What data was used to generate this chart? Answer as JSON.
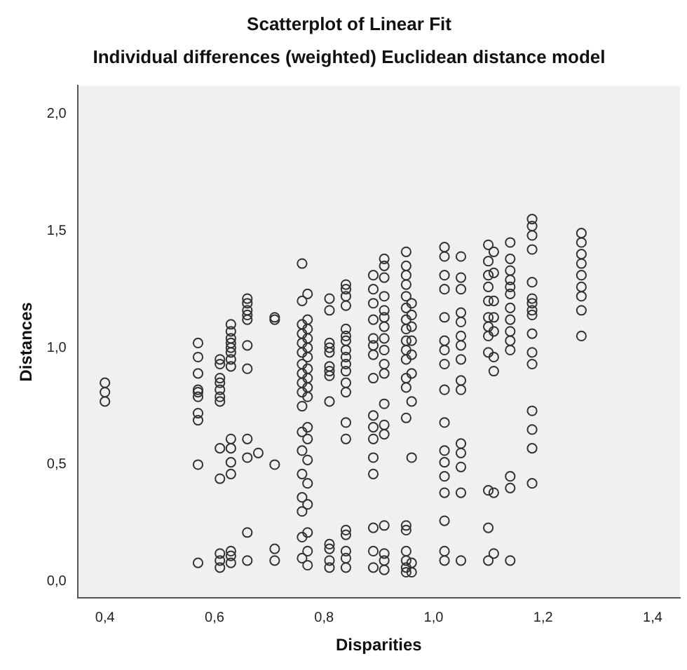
{
  "chart_data": {
    "type": "scatter",
    "title": "Scatterplot of Linear Fit",
    "subtitle": "Individual differences (weighted) Euclidean distance model",
    "xlabel": "Disparities",
    "ylabel": "Distances",
    "xlim": [
      0.35,
      1.45
    ],
    "ylim": [
      -0.07,
      2.12
    ],
    "xticks": [
      {
        "value": 0.4,
        "label": "0,4"
      },
      {
        "value": 0.6,
        "label": "0,6"
      },
      {
        "value": 0.8,
        "label": "0,8"
      },
      {
        "value": 1.0,
        "label": "1,0"
      },
      {
        "value": 1.2,
        "label": "1,2"
      },
      {
        "value": 1.4,
        "label": "1,4"
      }
    ],
    "yticks": [
      {
        "value": 0,
        "label": "0,0"
      },
      {
        "value": 0.5,
        "label": "0,5"
      },
      {
        "value": 1.0,
        "label": "1,0"
      },
      {
        "value": 1.5,
        "label": "1,5"
      },
      {
        "value": 2.0,
        "label": "2,0"
      }
    ],
    "grid": false,
    "legend": false,
    "marker": "circle",
    "color": "#333333",
    "x": [
      0.4,
      0.4,
      0.4,
      0.57,
      0.57,
      0.57,
      0.57,
      0.57,
      0.57,
      0.57,
      0.57,
      0.57,
      0.57,
      0.61,
      0.61,
      0.61,
      0.61,
      0.61,
      0.61,
      0.61,
      0.61,
      0.61,
      0.61,
      0.61,
      0.61,
      0.63,
      0.63,
      0.63,
      0.63,
      0.63,
      0.63,
      0.63,
      0.63,
      0.63,
      0.63,
      0.63,
      0.63,
      0.63,
      0.63,
      0.63,
      0.66,
      0.66,
      0.66,
      0.66,
      0.66,
      0.66,
      0.66,
      0.66,
      0.66,
      0.66,
      0.66,
      0.68,
      0.71,
      0.71,
      0.71,
      0.71,
      0.71,
      0.76,
      0.76,
      0.76,
      0.76,
      0.76,
      0.76,
      0.76,
      0.76,
      0.76,
      0.76,
      0.76,
      0.76,
      0.76,
      0.76,
      0.76,
      0.76,
      0.76,
      0.76,
      0.77,
      0.77,
      0.77,
      0.77,
      0.77,
      0.77,
      0.77,
      0.77,
      0.77,
      0.77,
      0.77,
      0.77,
      0.77,
      0.77,
      0.77,
      0.77,
      0.77,
      0.77,
      0.81,
      0.81,
      0.81,
      0.81,
      0.81,
      0.81,
      0.81,
      0.81,
      0.81,
      0.81,
      0.81,
      0.81,
      0.81,
      0.84,
      0.84,
      0.84,
      0.84,
      0.84,
      0.84,
      0.84,
      0.84,
      0.84,
      0.84,
      0.84,
      0.84,
      0.84,
      0.84,
      0.84,
      0.84,
      0.84,
      0.84,
      0.84,
      0.84,
      0.89,
      0.89,
      0.89,
      0.89,
      0.89,
      0.89,
      0.89,
      0.89,
      0.89,
      0.89,
      0.89,
      0.89,
      0.89,
      0.89,
      0.89,
      0.89,
      0.91,
      0.91,
      0.91,
      0.91,
      0.91,
      0.91,
      0.91,
      0.91,
      0.91,
      0.91,
      0.91,
      0.91,
      0.91,
      0.91,
      0.91,
      0.91,
      0.91,
      0.91,
      0.95,
      0.95,
      0.95,
      0.95,
      0.95,
      0.95,
      0.95,
      0.95,
      0.95,
      0.95,
      0.95,
      0.95,
      0.95,
      0.95,
      0.95,
      0.95,
      0.95,
      0.95,
      0.95,
      0.95,
      0.96,
      0.96,
      0.96,
      0.96,
      0.96,
      0.96,
      0.96,
      0.96,
      0.96,
      0.96,
      1.02,
      1.02,
      1.02,
      1.02,
      1.02,
      1.02,
      1.02,
      1.02,
      1.02,
      1.02,
      1.02,
      1.02,
      1.02,
      1.02,
      1.02,
      1.02,
      1.02,
      1.05,
      1.05,
      1.05,
      1.05,
      1.05,
      1.05,
      1.05,
      1.05,
      1.05,
      1.05,
      1.05,
      1.05,
      1.05,
      1.05,
      1.05,
      1.1,
      1.1,
      1.1,
      1.1,
      1.1,
      1.1,
      1.1,
      1.1,
      1.1,
      1.1,
      1.1,
      1.1,
      1.11,
      1.11,
      1.11,
      1.11,
      1.11,
      1.11,
      1.11,
      1.11,
      1.11,
      1.14,
      1.14,
      1.14,
      1.14,
      1.14,
      1.14,
      1.14,
      1.14,
      1.14,
      1.14,
      1.14,
      1.14,
      1.14,
      1.14,
      1.18,
      1.18,
      1.18,
      1.18,
      1.18,
      1.18,
      1.18,
      1.18,
      1.18,
      1.18,
      1.18,
      1.18,
      1.18,
      1.18,
      1.18,
      1.18,
      1.27,
      1.27,
      1.27,
      1.27,
      1.27,
      1.27,
      1.27,
      1.27,
      1.27
    ],
    "values": [
      0.85,
      0.81,
      0.77,
      1.02,
      0.96,
      0.89,
      0.82,
      0.81,
      0.79,
      0.72,
      0.69,
      0.5,
      0.08,
      0.95,
      0.93,
      0.87,
      0.85,
      0.82,
      0.79,
      0.77,
      0.57,
      0.44,
      0.12,
      0.09,
      0.06,
      1.1,
      1.07,
      1.04,
      1.02,
      1.0,
      0.98,
      0.95,
      0.92,
      0.61,
      0.57,
      0.51,
      0.46,
      0.13,
      0.11,
      0.08,
      1.21,
      1.19,
      1.16,
      1.14,
      1.12,
      1.01,
      0.91,
      0.61,
      0.53,
      0.21,
      0.09,
      0.55,
      1.13,
      1.12,
      0.5,
      0.14,
      0.09,
      1.36,
      1.2,
      1.1,
      1.06,
      1.02,
      0.98,
      0.93,
      0.89,
      0.85,
      0.81,
      0.75,
      0.64,
      0.56,
      0.46,
      0.36,
      0.3,
      0.19,
      0.1,
      1.23,
      1.12,
      1.08,
      1.04,
      1.0,
      0.96,
      0.91,
      0.87,
      0.83,
      0.79,
      0.66,
      0.61,
      0.52,
      0.42,
      0.33,
      0.21,
      0.13,
      0.07,
      1.21,
      1.16,
      1.02,
      1.0,
      0.98,
      0.92,
      0.9,
      0.88,
      0.77,
      0.16,
      0.14,
      0.09,
      0.06,
      1.27,
      1.25,
      1.22,
      1.18,
      1.08,
      1.05,
      1.03,
      0.99,
      0.96,
      0.93,
      0.9,
      0.85,
      0.81,
      0.68,
      0.61,
      0.22,
      0.2,
      0.13,
      0.1,
      0.06,
      1.31,
      1.25,
      1.19,
      1.12,
      1.04,
      1.01,
      0.97,
      0.87,
      0.71,
      0.66,
      0.61,
      0.53,
      0.46,
      0.23,
      0.13,
      0.06,
      1.38,
      1.35,
      1.3,
      1.22,
      1.16,
      1.13,
      1.09,
      1.04,
      0.99,
      0.93,
      0.89,
      0.76,
      0.67,
      0.63,
      0.24,
      0.12,
      0.09,
      0.05,
      1.41,
      1.35,
      1.31,
      1.27,
      1.22,
      1.17,
      1.12,
      1.08,
      1.03,
      0.99,
      0.95,
      0.87,
      0.83,
      0.7,
      0.24,
      0.22,
      0.13,
      0.09,
      0.06,
      0.04,
      1.19,
      1.14,
      1.09,
      1.03,
      0.97,
      0.89,
      0.77,
      0.53,
      0.08,
      0.04,
      1.43,
      1.39,
      1.31,
      1.25,
      1.13,
      1.03,
      0.99,
      0.93,
      0.82,
      0.68,
      0.56,
      0.51,
      0.45,
      0.38,
      0.26,
      0.13,
      0.09,
      1.39,
      1.3,
      1.25,
      1.15,
      1.11,
      1.05,
      1.01,
      0.95,
      0.86,
      0.82,
      0.59,
      0.55,
      0.49,
      0.38,
      0.09,
      1.44,
      1.37,
      1.31,
      1.26,
      1.2,
      1.13,
      1.09,
      1.05,
      0.98,
      0.39,
      0.23,
      0.09,
      1.41,
      1.32,
      1.2,
      1.13,
      1.07,
      0.96,
      0.9,
      0.38,
      0.12,
      1.45,
      1.38,
      1.33,
      1.29,
      1.26,
      1.23,
      1.17,
      1.12,
      1.07,
      1.03,
      0.99,
      0.45,
      0.4,
      0.09,
      1.55,
      1.52,
      1.48,
      1.42,
      1.28,
      1.21,
      1.19,
      1.16,
      1.14,
      1.06,
      0.98,
      0.93,
      0.73,
      0.65,
      0.57,
      0.42,
      1.49,
      1.45,
      1.4,
      1.36,
      1.31,
      1.26,
      1.22,
      1.16,
      1.05
    ]
  }
}
